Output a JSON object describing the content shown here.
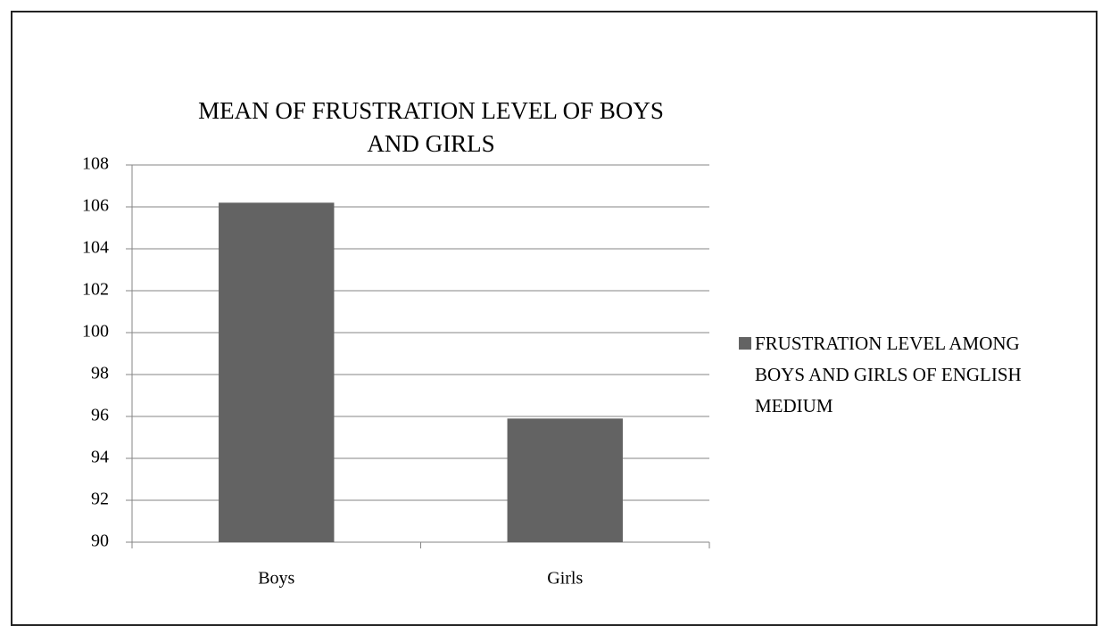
{
  "chart_data": {
    "type": "bar",
    "title": "MEAN OF FRUSTRATION LEVEL OF BOYS AND GIRLS",
    "categories": [
      "Boys",
      "Girls"
    ],
    "series": [
      {
        "name": "FRUSTRATION LEVEL AMONG BOYS AND GIRLS OF ENGLISH MEDIUM",
        "color": "#636363",
        "values": [
          106.2,
          95.9
        ]
      }
    ],
    "ylim": [
      90,
      108
    ],
    "yticks": [
      90,
      92,
      94,
      96,
      98,
      100,
      102,
      104,
      106,
      108
    ],
    "grid": true,
    "legend": "right"
  }
}
